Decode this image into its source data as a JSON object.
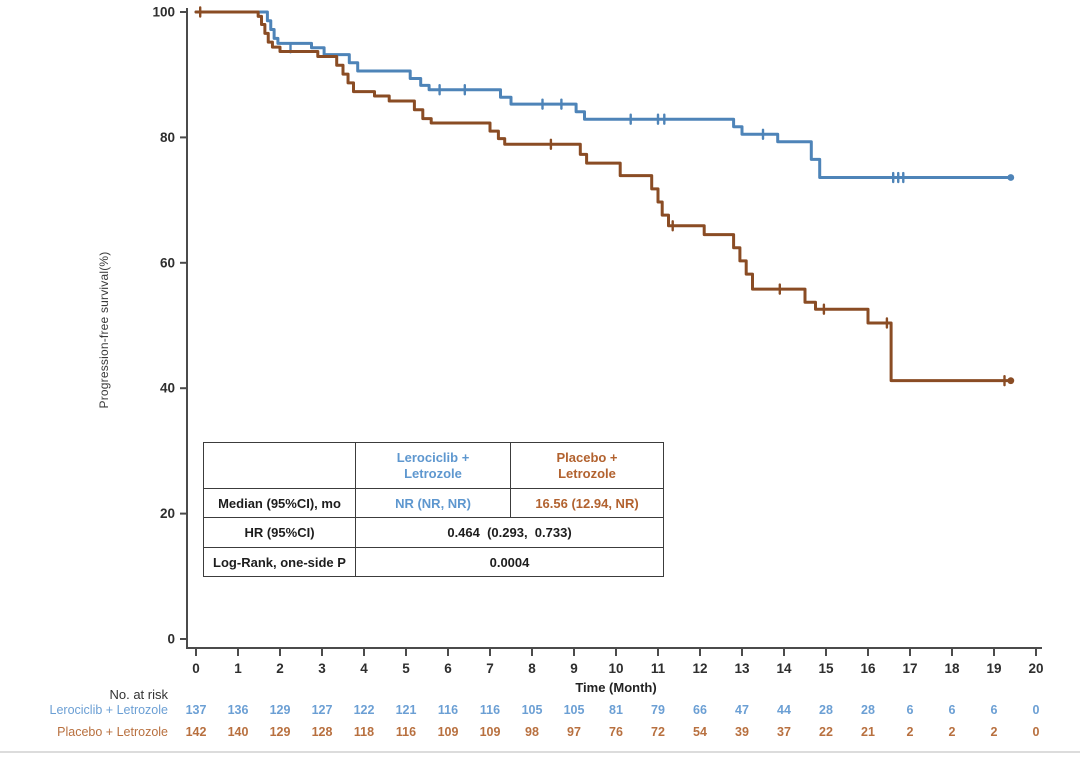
{
  "chart_data": {
    "type": "line",
    "variant": "kaplan-meier-step",
    "title": "",
    "ylabel": "Progression-free survival(%)",
    "xlabel": "Time (Month)",
    "xlim": [
      0,
      20
    ],
    "ylim": [
      0,
      100
    ],
    "xticks": [
      0,
      1,
      2,
      3,
      4,
      5,
      6,
      7,
      8,
      9,
      10,
      11,
      12,
      13,
      14,
      15,
      16,
      17,
      18,
      19,
      20
    ],
    "yticks": [
      0,
      20,
      40,
      60,
      80,
      100
    ],
    "grid": false,
    "legend_position": "none",
    "axis_color": "#4b4b4b",
    "tick_label_color": "#2e2e2e",
    "series": [
      {
        "name": "Lerociclib + Letrozole",
        "color": "#4e84b8",
        "steps": [
          [
            0,
            100
          ],
          [
            1.7,
            98.6
          ],
          [
            1.78,
            97.2
          ],
          [
            1.86,
            95.8
          ],
          [
            1.95,
            95.0
          ],
          [
            2.75,
            94.3
          ],
          [
            3.05,
            93.2
          ],
          [
            3.65,
            91.9
          ],
          [
            3.85,
            90.6
          ],
          [
            5.1,
            89.4
          ],
          [
            5.35,
            88.3
          ],
          [
            5.55,
            87.6
          ],
          [
            7.25,
            86.4
          ],
          [
            7.5,
            85.3
          ],
          [
            9.05,
            84.1
          ],
          [
            9.25,
            82.9
          ],
          [
            12.8,
            81.7
          ],
          [
            13.0,
            80.5
          ],
          [
            13.85,
            79.3
          ],
          [
            14.65,
            76.5
          ],
          [
            14.85,
            73.6
          ],
          [
            19.4,
            73.6
          ]
        ],
        "censors": [
          [
            2.25,
            94.3
          ],
          [
            5.8,
            87.6
          ],
          [
            6.4,
            87.6
          ],
          [
            8.25,
            85.3
          ],
          [
            8.7,
            85.3
          ],
          [
            10.35,
            82.9
          ],
          [
            11.0,
            82.9
          ],
          [
            11.15,
            82.9
          ],
          [
            13.5,
            80.5
          ],
          [
            16.6,
            73.6
          ],
          [
            16.72,
            73.6
          ],
          [
            16.84,
            73.6
          ]
        ],
        "end_dot": [
          19.4,
          73.6
        ]
      },
      {
        "name": "Placebo + Letrozole",
        "color": "#8a4c24",
        "steps": [
          [
            0,
            100
          ],
          [
            1.48,
            99.3
          ],
          [
            1.56,
            98.0
          ],
          [
            1.64,
            96.6
          ],
          [
            1.72,
            95.2
          ],
          [
            1.82,
            94.4
          ],
          [
            2.0,
            93.7
          ],
          [
            2.9,
            92.9
          ],
          [
            3.35,
            91.5
          ],
          [
            3.5,
            90.1
          ],
          [
            3.62,
            88.7
          ],
          [
            3.75,
            87.3
          ],
          [
            4.25,
            86.6
          ],
          [
            4.6,
            85.8
          ],
          [
            5.2,
            84.4
          ],
          [
            5.4,
            83.0
          ],
          [
            5.6,
            82.3
          ],
          [
            7.0,
            81.0
          ],
          [
            7.2,
            79.8
          ],
          [
            7.35,
            78.9
          ],
          [
            9.15,
            77.3
          ],
          [
            9.3,
            75.9
          ],
          [
            10.1,
            73.9
          ],
          [
            10.85,
            71.8
          ],
          [
            11.0,
            69.7
          ],
          [
            11.1,
            67.6
          ],
          [
            11.25,
            65.9
          ],
          [
            12.1,
            64.5
          ],
          [
            12.8,
            62.4
          ],
          [
            12.95,
            60.3
          ],
          [
            13.1,
            58.2
          ],
          [
            13.25,
            55.8
          ],
          [
            14.5,
            53.7
          ],
          [
            14.75,
            52.6
          ],
          [
            16.0,
            50.4
          ],
          [
            16.55,
            41.2
          ],
          [
            19.4,
            41.2
          ]
        ],
        "censors": [
          [
            0.1,
            100
          ],
          [
            8.45,
            78.9
          ],
          [
            11.35,
            65.9
          ],
          [
            13.9,
            55.8
          ],
          [
            14.95,
            52.6
          ],
          [
            16.45,
            50.4
          ],
          [
            19.25,
            41.2
          ]
        ],
        "end_dot": [
          19.4,
          41.2
        ]
      }
    ],
    "stats_table": {
      "columns": [
        "",
        "Lerociclib +\nLetrozole",
        "Placebo +\nLetrozole"
      ],
      "col_colors": [
        "#1d1d1d",
        "#5e97cf",
        "#b2622f"
      ],
      "rows": [
        {
          "label": "Median (95%CI), mo",
          "cells": [
            "NR (NR, NR)",
            "16.56 (12.94, NR)"
          ]
        },
        {
          "label": "HR (95%CI)",
          "cells": [
            "0.464  (0.293,  0.733)"
          ]
        },
        {
          "label": "Log-Rank, one-side P",
          "cells": [
            "0.0004"
          ]
        }
      ]
    },
    "risk_table": {
      "title": "No. at risk",
      "times": [
        0,
        1,
        2,
        3,
        4,
        5,
        6,
        7,
        8,
        9,
        10,
        11,
        12,
        13,
        14,
        15,
        16,
        17,
        18,
        19,
        20
      ],
      "rows": [
        {
          "name": "Lerociclib + Letrozole",
          "text_color": "#6b9fd4",
          "counts": [
            137,
            136,
            129,
            127,
            122,
            121,
            116,
            116,
            105,
            105,
            81,
            79,
            66,
            47,
            44,
            28,
            28,
            6,
            6,
            6,
            0
          ]
        },
        {
          "name": "Placebo + Letrozole",
          "text_color": "#b8703f",
          "counts": [
            142,
            140,
            129,
            128,
            118,
            116,
            109,
            109,
            98,
            97,
            76,
            72,
            54,
            39,
            37,
            22,
            21,
            2,
            2,
            2,
            0
          ]
        }
      ]
    }
  }
}
